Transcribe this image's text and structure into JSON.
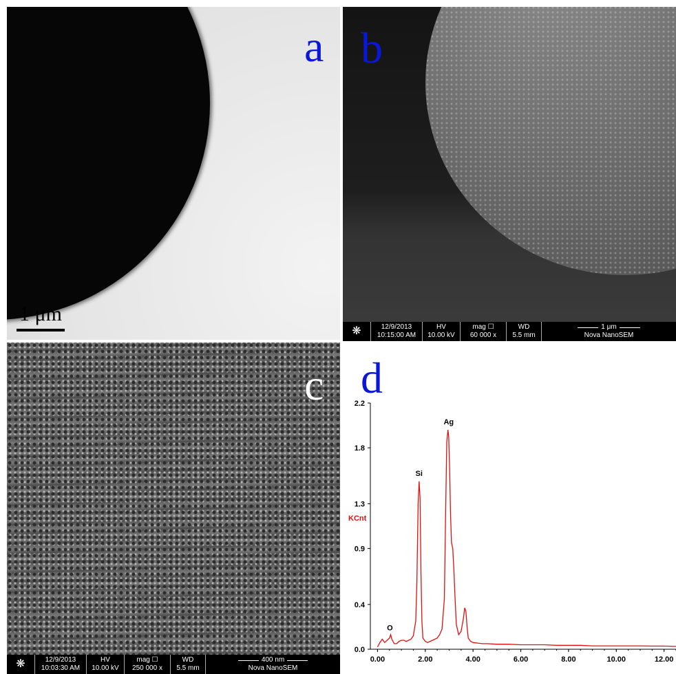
{
  "panels": {
    "a": {
      "label": "a",
      "scale_bar": "1 μm"
    },
    "b": {
      "label": "b",
      "info": {
        "date": "12/9/2013",
        "time": "10:15:00 AM",
        "hv_label": "HV",
        "hv": "10.00 kV",
        "mag_label": "mag ☐",
        "mag": "60 000 x",
        "wd_label": "WD",
        "wd": "5.5 mm",
        "scale": "1 μm",
        "instrument": "Nova NanoSEM"
      }
    },
    "c": {
      "label": "c",
      "info": {
        "date": "12/9/2013",
        "time": "10:03:30 AM",
        "hv_label": "HV",
        "hv": "10.00 kV",
        "mag_label": "mag ☐",
        "mag": "250 000 x",
        "wd_label": "WD",
        "wd": "5.5 mm",
        "scale": "400 nm",
        "instrument": "Nova NanoSEM"
      }
    },
    "d": {
      "label": "d"
    }
  },
  "colors": {
    "panel_label": "#0b17d8",
    "spectrum": "#e01010"
  },
  "chart_data": {
    "type": "line",
    "ylabel": "KCnt",
    "xlabel": "",
    "xlim": [
      -0.3,
      12.5
    ],
    "ylim": [
      0,
      2.2
    ],
    "x_ticks": [
      "0.00",
      "2.00",
      "4.00",
      "6.00",
      "8.00",
      "10.00",
      "12.00"
    ],
    "y_ticks": [
      "0.0",
      "0.4",
      "0.9",
      "1.3",
      "1.8",
      "2.2"
    ],
    "peaks": [
      {
        "name": "O",
        "x": 0.52,
        "y": 0.12
      },
      {
        "name": "Si",
        "x": 1.74,
        "y": 1.5
      },
      {
        "name": "Ag",
        "x": 2.98,
        "y": 1.96
      }
    ],
    "series": [
      {
        "x": [
          0.0,
          0.1,
          0.2,
          0.3,
          0.4,
          0.5,
          0.55,
          0.6,
          0.7,
          0.8,
          0.9,
          1.0,
          1.1,
          1.2,
          1.3,
          1.4,
          1.5,
          1.6,
          1.65,
          1.7,
          1.74,
          1.78,
          1.82,
          1.86,
          1.9,
          2.0,
          2.1,
          2.2,
          2.3,
          2.4,
          2.5,
          2.6,
          2.7,
          2.8,
          2.85,
          2.9,
          2.95,
          2.98,
          3.02,
          3.06,
          3.1,
          3.15,
          3.2,
          3.25,
          3.3,
          3.4,
          3.5,
          3.6,
          3.65,
          3.7,
          3.75,
          3.8,
          3.9,
          4.0,
          4.2,
          4.4,
          4.6,
          5.0,
          5.5,
          6.0,
          6.5,
          7.0,
          7.5,
          8.0,
          8.5,
          9.0,
          9.5,
          10.0,
          10.5,
          11.0,
          11.5,
          12.0,
          12.5
        ],
        "y": [
          0.02,
          0.06,
          0.09,
          0.06,
          0.08,
          0.1,
          0.13,
          0.09,
          0.05,
          0.05,
          0.07,
          0.08,
          0.08,
          0.07,
          0.08,
          0.09,
          0.12,
          0.25,
          0.6,
          1.3,
          1.5,
          1.35,
          0.7,
          0.25,
          0.1,
          0.07,
          0.06,
          0.07,
          0.08,
          0.09,
          0.1,
          0.13,
          0.18,
          0.45,
          1.2,
          1.85,
          1.96,
          1.9,
          1.6,
          1.2,
          0.95,
          0.9,
          0.7,
          0.45,
          0.22,
          0.13,
          0.16,
          0.28,
          0.37,
          0.34,
          0.2,
          0.1,
          0.07,
          0.06,
          0.055,
          0.05,
          0.05,
          0.045,
          0.045,
          0.04,
          0.04,
          0.04,
          0.035,
          0.035,
          0.035,
          0.03,
          0.03,
          0.03,
          0.03,
          0.03,
          0.028,
          0.028,
          0.025
        ]
      }
    ]
  }
}
